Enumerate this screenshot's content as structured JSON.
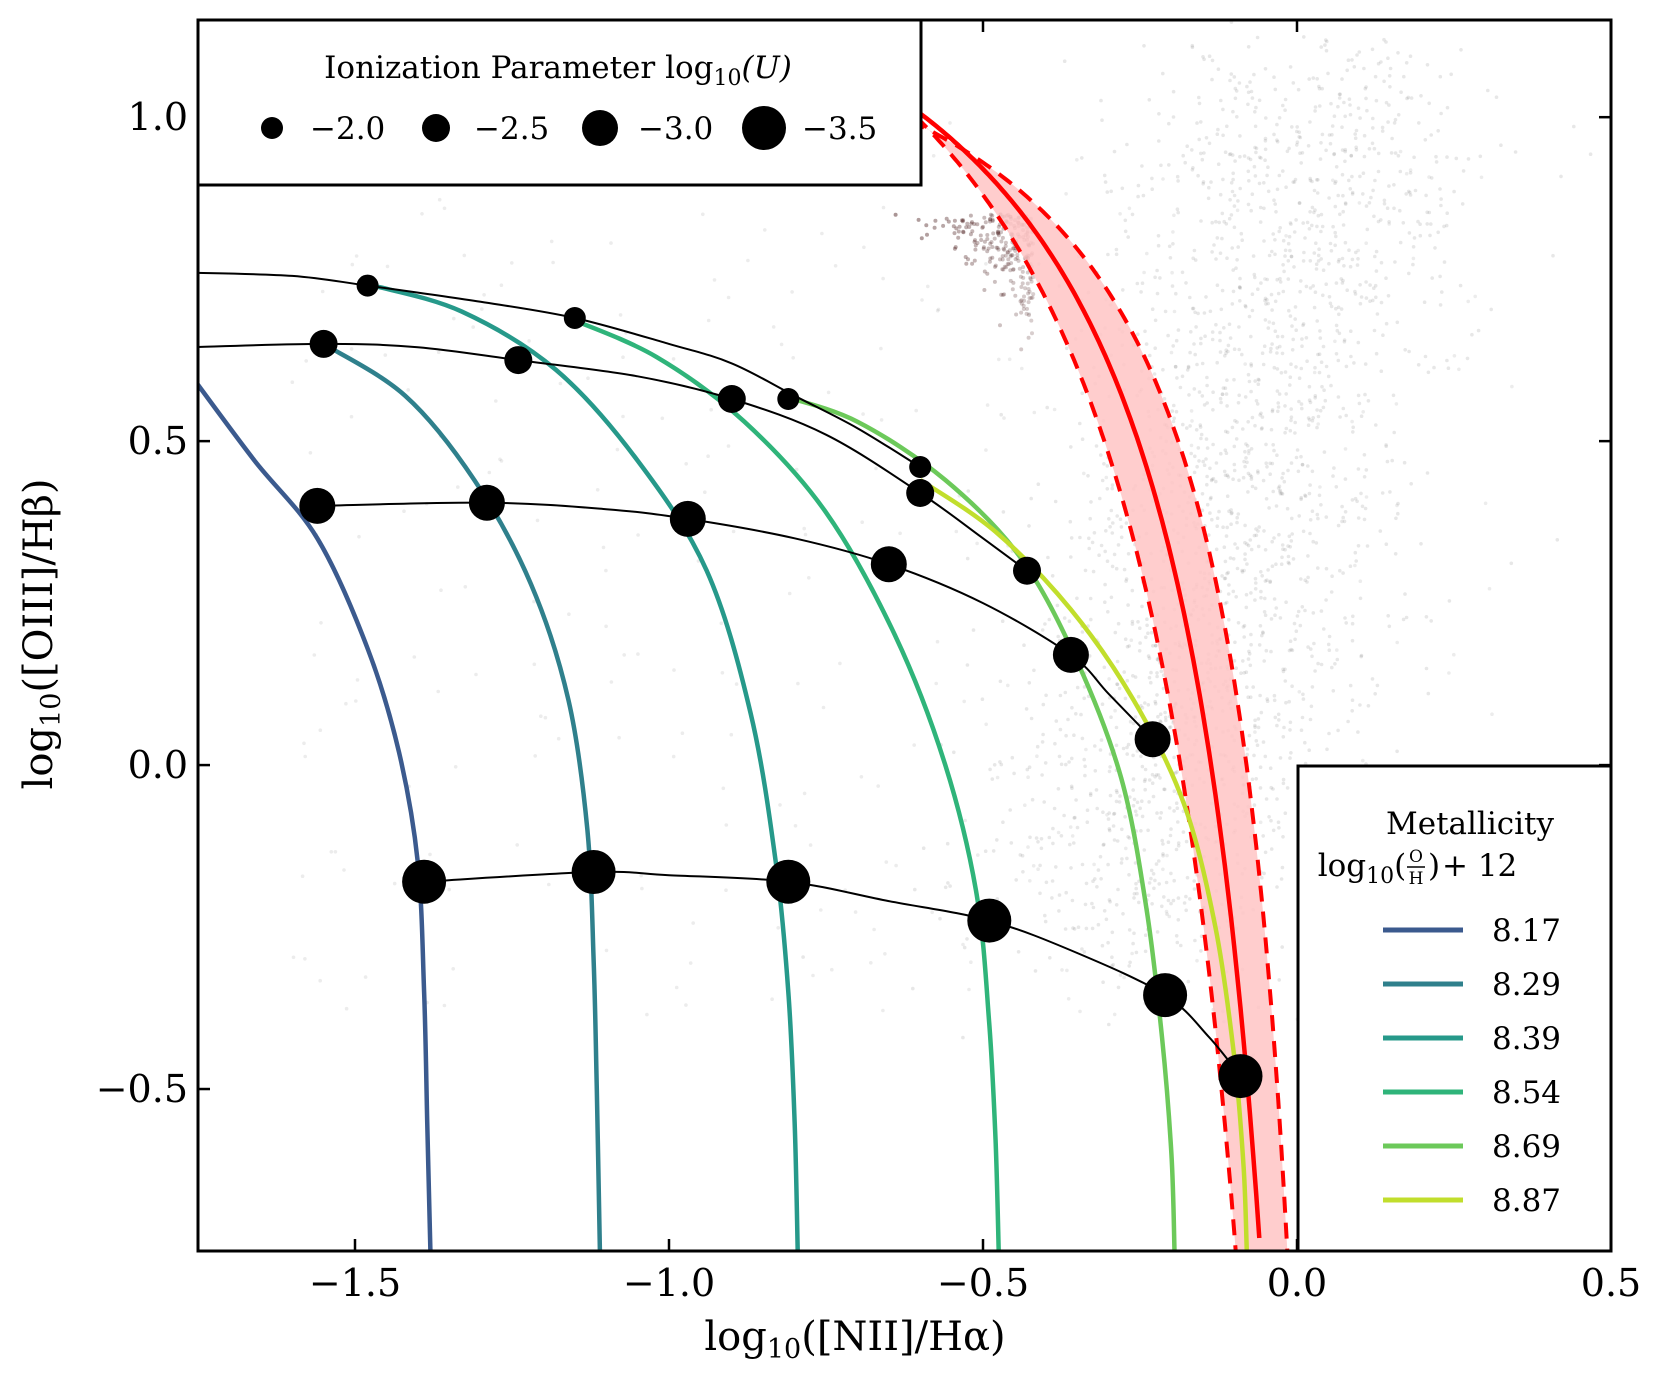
{
  "chart_data": {
    "type": "scatter",
    "title": "",
    "xlabel": "log10([NII]/Hα)",
    "ylabel": "log10([OIII]/Hβ)",
    "xlim": [
      -1.75,
      0.5
    ],
    "ylim": [
      -0.75,
      1.15
    ],
    "x_ticks": [
      -1.5,
      -1.0,
      -0.5,
      0.0,
      0.5
    ],
    "x_tick_labels": [
      "−1.5",
      "−1.0",
      "−0.5",
      "0.0",
      "0.5"
    ],
    "y_ticks": [
      -0.5,
      0.0,
      0.5,
      1.0
    ],
    "y_tick_labels": [
      "−0.5",
      "0.0",
      "0.5",
      "1.0"
    ],
    "grid": false,
    "background_points": {
      "description_free": true,
      "sf_sequence_color": "#3a0a0a",
      "agn_cloud_color": "#555555"
    },
    "fit_band": {
      "color": "#ff0000",
      "fill": "#ffc4c4",
      "asymptote": 0.1,
      "a": 0.36,
      "b": 1.52,
      "a_lower": 0.24,
      "b_lower": 1.33,
      "a_upper": 0.48,
      "b_upper": 1.68
    },
    "metallicity_legend": {
      "title_line1": "Metallicity",
      "title_prefix": "log",
      "title_sub": "10",
      "title_frac_num": "O",
      "title_frac_den": "H",
      "title_suffix": "+ 12",
      "placement": "lower-right"
    },
    "metallicity_tracks": [
      {
        "label": "8.17",
        "color": "#3b5a8e",
        "x": [
          -1.76,
          -1.66,
          -1.56,
          -1.48,
          -1.43,
          -1.4,
          -1.39,
          -1.385,
          -1.38
        ],
        "y": [
          0.6,
          0.47,
          0.35,
          0.18,
          0.02,
          -0.15,
          -0.35,
          -0.55,
          -0.75
        ]
      },
      {
        "label": "8.29",
        "color": "#2f808c",
        "x": [
          -1.55,
          -1.42,
          -1.31,
          -1.22,
          -1.16,
          -1.13,
          -1.12,
          -1.115,
          -1.11
        ],
        "y": [
          0.65,
          0.57,
          0.44,
          0.28,
          0.1,
          -0.1,
          -0.3,
          -0.5,
          -0.75
        ]
      },
      {
        "label": "8.39",
        "color": "#26998a",
        "x": [
          -1.47,
          -1.33,
          -1.18,
          -1.05,
          -0.94,
          -0.87,
          -0.83,
          -0.81,
          -0.8,
          -0.795
        ],
        "y": [
          0.74,
          0.7,
          0.61,
          0.47,
          0.3,
          0.08,
          -0.15,
          -0.35,
          -0.55,
          -0.75
        ]
      },
      {
        "label": "8.54",
        "color": "#2fb47a",
        "x": [
          -1.16,
          -1.02,
          -0.88,
          -0.75,
          -0.64,
          -0.56,
          -0.51,
          -0.49,
          -0.48,
          -0.475
        ],
        "y": [
          0.69,
          0.63,
          0.53,
          0.39,
          0.2,
          0.0,
          -0.2,
          -0.4,
          -0.58,
          -0.75
        ]
      },
      {
        "label": "8.69",
        "color": "#6cc95a",
        "x": [
          -0.82,
          -0.7,
          -0.56,
          -0.44,
          -0.35,
          -0.28,
          -0.24,
          -0.215,
          -0.2,
          -0.195
        ],
        "y": [
          0.57,
          0.53,
          0.44,
          0.32,
          0.16,
          -0.02,
          -0.22,
          -0.42,
          -0.6,
          -0.75
        ]
      },
      {
        "label": "8.87",
        "color": "#c1de2c",
        "x": [
          -0.6,
          -0.48,
          -0.36,
          -0.26,
          -0.18,
          -0.13,
          -0.1,
          -0.085,
          -0.08
        ],
        "y": [
          0.44,
          0.36,
          0.24,
          0.1,
          -0.06,
          -0.25,
          -0.45,
          -0.62,
          -0.75
        ]
      }
    ],
    "ionization_legend": {
      "title_prefix": "Ionization Parameter log",
      "title_sub": "10",
      "title_suffix": "(U)",
      "placement": "top-left",
      "entries": [
        {
          "label": "−2.0",
          "r": 11
        },
        {
          "label": "−2.5",
          "r": 14
        },
        {
          "label": "−3.0",
          "r": 18
        },
        {
          "label": "−3.5",
          "r": 22
        }
      ]
    },
    "ionization_tracks": [
      {
        "U": "−2.0",
        "r": 11,
        "line_x": [
          -1.76,
          -1.6,
          -1.48,
          -1.3,
          -1.15,
          -1.0,
          -0.9,
          -0.8,
          -0.7,
          -0.6
        ],
        "line_y": [
          0.76,
          0.755,
          0.74,
          0.715,
          0.69,
          0.65,
          0.62,
          0.57,
          0.52,
          0.46
        ],
        "points_x": [
          -1.48,
          -1.15,
          -0.81,
          -0.6
        ],
        "points_y": [
          0.74,
          0.69,
          0.565,
          0.46
        ]
      },
      {
        "U": "−2.5",
        "r": 14,
        "line_x": [
          -1.76,
          -1.55,
          -1.4,
          -1.24,
          -1.05,
          -0.9,
          -0.75,
          -0.6,
          -0.5,
          -0.43
        ],
        "line_y": [
          0.645,
          0.65,
          0.645,
          0.625,
          0.6,
          0.565,
          0.51,
          0.42,
          0.35,
          0.3
        ],
        "points_x": [
          -1.55,
          -1.24,
          -0.9,
          -0.6,
          -0.43
        ],
        "points_y": [
          0.65,
          0.625,
          0.565,
          0.42,
          0.3
        ]
      },
      {
        "U": "−3.0",
        "r": 18,
        "line_x": [
          -1.56,
          -1.29,
          -1.1,
          -0.97,
          -0.8,
          -0.65,
          -0.5,
          -0.36,
          -0.3,
          -0.23
        ],
        "line_y": [
          0.4,
          0.405,
          0.395,
          0.38,
          0.35,
          0.31,
          0.25,
          0.17,
          0.11,
          0.04
        ],
        "points_x": [
          -1.56,
          -1.29,
          -0.97,
          -0.65,
          -0.36,
          -0.23
        ],
        "points_y": [
          0.4,
          0.405,
          0.38,
          0.31,
          0.17,
          0.04
        ]
      },
      {
        "U": "−3.5",
        "r": 22,
        "line_x": [
          -1.39,
          -1.12,
          -1.0,
          -0.81,
          -0.65,
          -0.49,
          -0.35,
          -0.21,
          -0.14,
          -0.09
        ],
        "line_y": [
          -0.18,
          -0.165,
          -0.17,
          -0.18,
          -0.21,
          -0.24,
          -0.29,
          -0.355,
          -0.42,
          -0.48
        ],
        "points_x": [
          -1.39,
          -1.12,
          -0.81,
          -0.49,
          -0.21,
          -0.09
        ],
        "points_y": [
          -0.18,
          -0.165,
          -0.18,
          -0.24,
          -0.355,
          -0.48
        ]
      }
    ]
  }
}
